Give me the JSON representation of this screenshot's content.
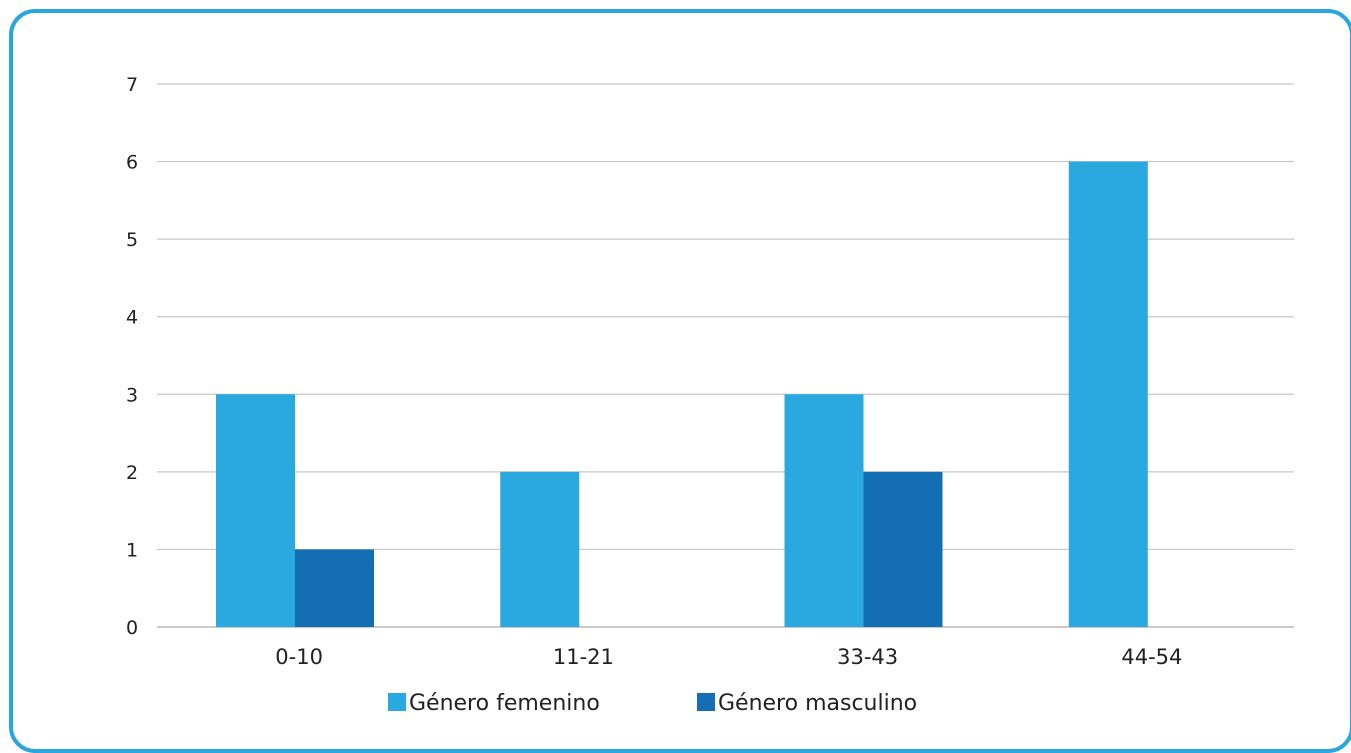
{
  "chart_data": {
    "type": "bar",
    "categories": [
      "0-10",
      "11-21",
      "33-43",
      "44-54"
    ],
    "series": [
      {
        "name": "Género femenino",
        "values": [
          3,
          2,
          3,
          6
        ],
        "color": "#2aa9e0"
      },
      {
        "name": "Género masculino",
        "values": [
          1,
          0,
          2,
          0
        ],
        "color": "#146eb4"
      }
    ],
    "yticks": [
      "0",
      "1",
      "2",
      "3",
      "4",
      "5",
      "6",
      "7"
    ],
    "ylim": [
      0,
      7
    ],
    "grid": true,
    "legend_position": "bottom",
    "frame_color": "#2aa6df",
    "grid_color": "#c8c8c8"
  }
}
